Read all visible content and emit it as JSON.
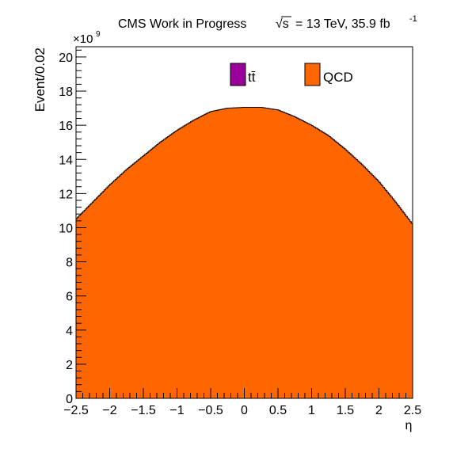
{
  "header": {
    "text": "CMS Work in Progress",
    "sqrt_s_symbol": "√s",
    "energy_lumi": "= 13 TeV, 35.9 fb",
    "lumi_exponent": "-1"
  },
  "chart_data": {
    "type": "bar",
    "title": "",
    "xlabel": "η",
    "ylabel": "Event/0.02",
    "y_multiplier_base": "×10",
    "y_multiplier_exp": "9",
    "xlim": [
      -2.5,
      2.5
    ],
    "ylim": [
      0,
      20.6
    ],
    "x_ticks": [
      -2.5,
      -2,
      -1.5,
      -1,
      -0.5,
      0,
      0.5,
      1,
      1.5,
      2,
      2.5
    ],
    "x_tick_labels": [
      "−2.5",
      "−2",
      "−1.5",
      "−1",
      "−0.5",
      "0",
      "0.5",
      "1",
      "1.5",
      "2",
      "2.5"
    ],
    "y_ticks": [
      0,
      2,
      4,
      6,
      8,
      10,
      12,
      14,
      16,
      18,
      20
    ],
    "y_tick_labels": [
      "0",
      "2",
      "4",
      "6",
      "8",
      "10",
      "12",
      "14",
      "16",
      "18",
      "20"
    ],
    "bin_width": 0.02,
    "legend": [
      {
        "label": "tt̄",
        "color": "#990099"
      },
      {
        "label": "QCD",
        "color": "#ff6600"
      }
    ],
    "legend_position": "top-center",
    "series": [
      {
        "name": "QCD",
        "color": "#ff6600",
        "x": [
          -2.5,
          -2.25,
          -2.0,
          -1.75,
          -1.5,
          -1.25,
          -1.0,
          -0.75,
          -0.5,
          -0.25,
          0.0,
          0.25,
          0.5,
          0.75,
          1.0,
          1.25,
          1.5,
          1.75,
          2.0,
          2.25,
          2.5
        ],
        "values": [
          10.5,
          11.5,
          12.5,
          13.4,
          14.2,
          15.0,
          15.7,
          16.3,
          16.8,
          17.0,
          17.05,
          17.05,
          16.9,
          16.5,
          16.0,
          15.4,
          14.6,
          13.7,
          12.7,
          11.5,
          10.2
        ]
      },
      {
        "name": "tt̄",
        "color": "#990099",
        "values": []
      }
    ]
  }
}
